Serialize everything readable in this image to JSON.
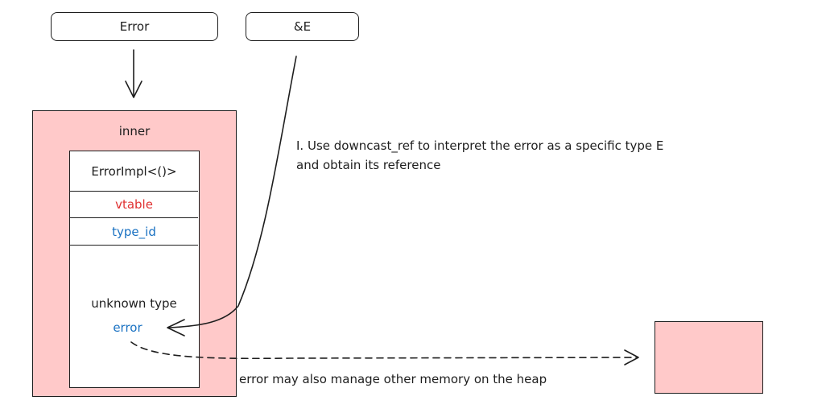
{
  "top_boxes": {
    "error_label": "Error",
    "ref_label": "&E"
  },
  "inner": {
    "title": "inner",
    "struct_name": "ErrorImpl<()>",
    "vtable": "vtable",
    "type_id": "type_id",
    "unknown_type": "unknown type",
    "error_field": "error"
  },
  "annotations": {
    "step1_line1": "I. Use downcast_ref to interpret the error as a specific type E",
    "step1_line2": "and obtain its reference",
    "heap_note": "error may also manage other memory on the heap"
  },
  "colors": {
    "box_fill": "#ffc9c9",
    "vtable_text": "#e03131",
    "type_id_text": "#1971c2",
    "error_text": "#1971c2",
    "stroke": "#1e1e1e"
  }
}
